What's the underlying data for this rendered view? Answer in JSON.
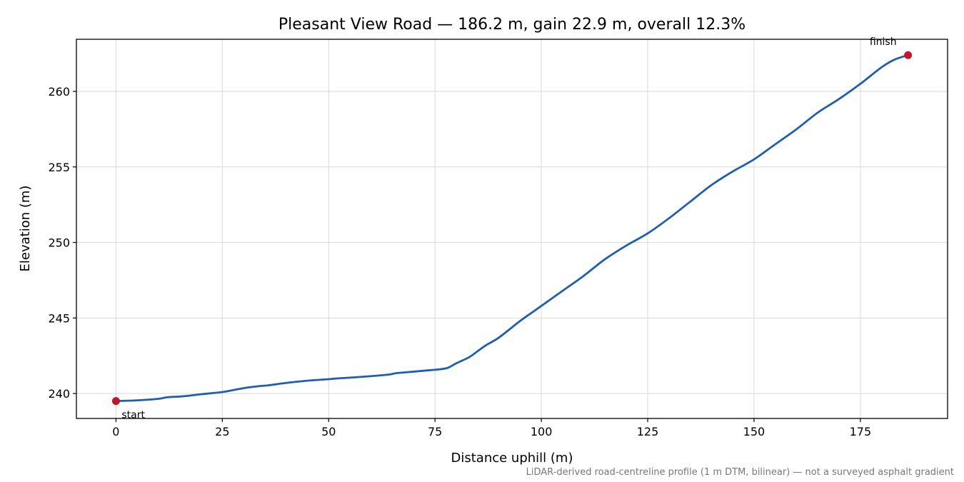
{
  "chart_data": {
    "type": "line",
    "title": "Pleasant View Road — 186.2 m, gain 22.9 m, overall 12.3%",
    "xlabel": "Distance uphill (m)",
    "ylabel": "Elevation (m)",
    "footnote": "LiDAR-derived road-centreline profile (1 m DTM, bilinear) — not a surveyed asphalt gradient",
    "xlim": [
      -9.3,
      195.5
    ],
    "ylim": [
      238.35,
      263.45
    ],
    "xticks": [
      0,
      25,
      50,
      75,
      100,
      125,
      150,
      175
    ],
    "yticks": [
      240,
      245,
      250,
      255,
      260
    ],
    "grid": true,
    "line_color": "#1f5fad",
    "marker_color": "#c0182a",
    "series": [
      {
        "x": [
          0,
          5,
          10,
          12,
          15,
          17,
          20,
          25,
          28,
          31,
          34,
          36,
          40,
          45,
          50,
          52,
          55,
          60,
          64,
          66,
          70,
          74,
          76,
          78,
          80,
          83,
          85,
          87,
          90,
          95,
          98,
          100,
          105,
          110,
          115,
          120,
          125,
          130,
          135,
          140,
          145,
          150,
          155,
          160,
          165,
          170,
          175,
          180,
          183,
          186.2
        ],
        "y": [
          239.5,
          239.55,
          239.65,
          239.75,
          239.8,
          239.85,
          239.95,
          240.1,
          240.25,
          240.4,
          240.5,
          240.55,
          240.7,
          240.85,
          240.95,
          241.0,
          241.05,
          241.15,
          241.25,
          241.35,
          241.45,
          241.55,
          241.6,
          241.7,
          242.0,
          242.4,
          242.8,
          243.2,
          243.7,
          244.8,
          245.4,
          245.8,
          246.8,
          247.8,
          248.9,
          249.8,
          250.6,
          251.6,
          252.7,
          253.8,
          254.7,
          255.5,
          256.5,
          257.5,
          258.6,
          259.5,
          260.5,
          261.6,
          262.1,
          262.4
        ]
      }
    ],
    "annotations": [
      {
        "text": "start",
        "x": 0,
        "y": 239.5
      },
      {
        "text": "finish",
        "x": 186.2,
        "y": 262.4
      }
    ]
  }
}
